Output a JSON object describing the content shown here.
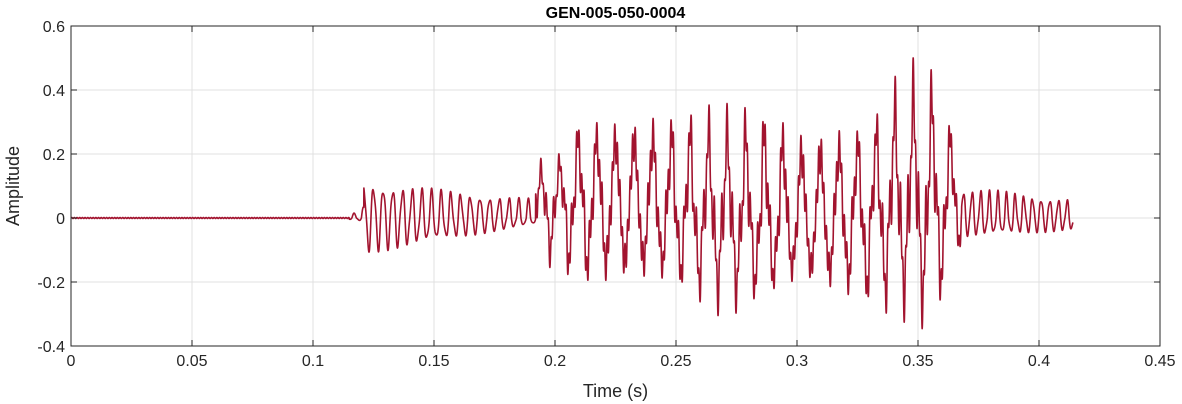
{
  "chart_data": {
    "type": "line",
    "title": "GEN-005-050-0004",
    "xlabel": "Time (s)",
    "ylabel": "Amplitude",
    "xlim": [
      0,
      0.45
    ],
    "ylim": [
      -0.4,
      0.6
    ],
    "grid": true,
    "legend": "none",
    "x_ticks": [
      0,
      0.05,
      0.1,
      0.15,
      0.2,
      0.25,
      0.3,
      0.35,
      0.4,
      0.45
    ],
    "x_tick_labels": [
      "0",
      "0.05",
      "0.1",
      "0.15",
      "0.2",
      "0.25",
      "0.3",
      "0.35",
      "0.4",
      "0.45"
    ],
    "y_ticks": [
      -0.4,
      -0.2,
      0,
      0.2,
      0.4,
      0.6
    ],
    "y_tick_labels": [
      "-0.4",
      "-0.2",
      "0",
      "0.2",
      "0.4",
      "0.6"
    ],
    "series": [
      {
        "color": "#A2142F",
        "signal": {
          "duration": 0.414,
          "silence_end": 0.115,
          "segments": [
            {
              "t": [
                0.115,
                0.121
              ],
              "freq": 250,
              "pos": [
                0.005,
                0.04
              ],
              "neg": [
                -0.005,
                -0.01
              ]
            },
            {
              "t": [
                0.121,
                0.192
              ],
              "freq": 250,
              "pos": [
                0.115,
                0.06
              ],
              "neg": [
                -0.115,
                -0.02
              ]
            },
            {
              "t": [
                0.192,
                0.368
              ],
              "freq": 130,
              "pos": [
                0.24,
                0.49
              ],
              "neg": [
                -0.26,
                -0.35
              ],
              "base": 0.02
            },
            {
              "t": [
                0.368,
                0.414
              ],
              "freq": 280,
              "pos": [
                0.1,
                0.06
              ],
              "neg": [
                -0.06,
                -0.04
              ]
            }
          ],
          "envelope_points": [
            {
              "x": 0.2,
              "pos": 0.18,
              "neg": -0.15
            },
            {
              "x": 0.21,
              "pos": 0.33,
              "neg": -0.24
            },
            {
              "x": 0.245,
              "pos": 0.36,
              "neg": -0.22
            },
            {
              "x": 0.27,
              "pos": 0.34,
              "neg": -0.3
            },
            {
              "x": 0.29,
              "pos": 0.37,
              "neg": -0.26
            },
            {
              "x": 0.3,
              "pos": 0.31,
              "neg": -0.22
            },
            {
              "x": 0.33,
              "pos": 0.32,
              "neg": -0.3
            },
            {
              "x": 0.345,
              "pos": 0.48,
              "neg": -0.31
            },
            {
              "x": 0.355,
              "pos": 0.48,
              "neg": -0.35
            },
            {
              "x": 0.362,
              "pos": 0.36,
              "neg": -0.24
            },
            {
              "x": 0.368,
              "pos": 0.2,
              "neg": -0.1
            }
          ]
        }
      }
    ]
  }
}
